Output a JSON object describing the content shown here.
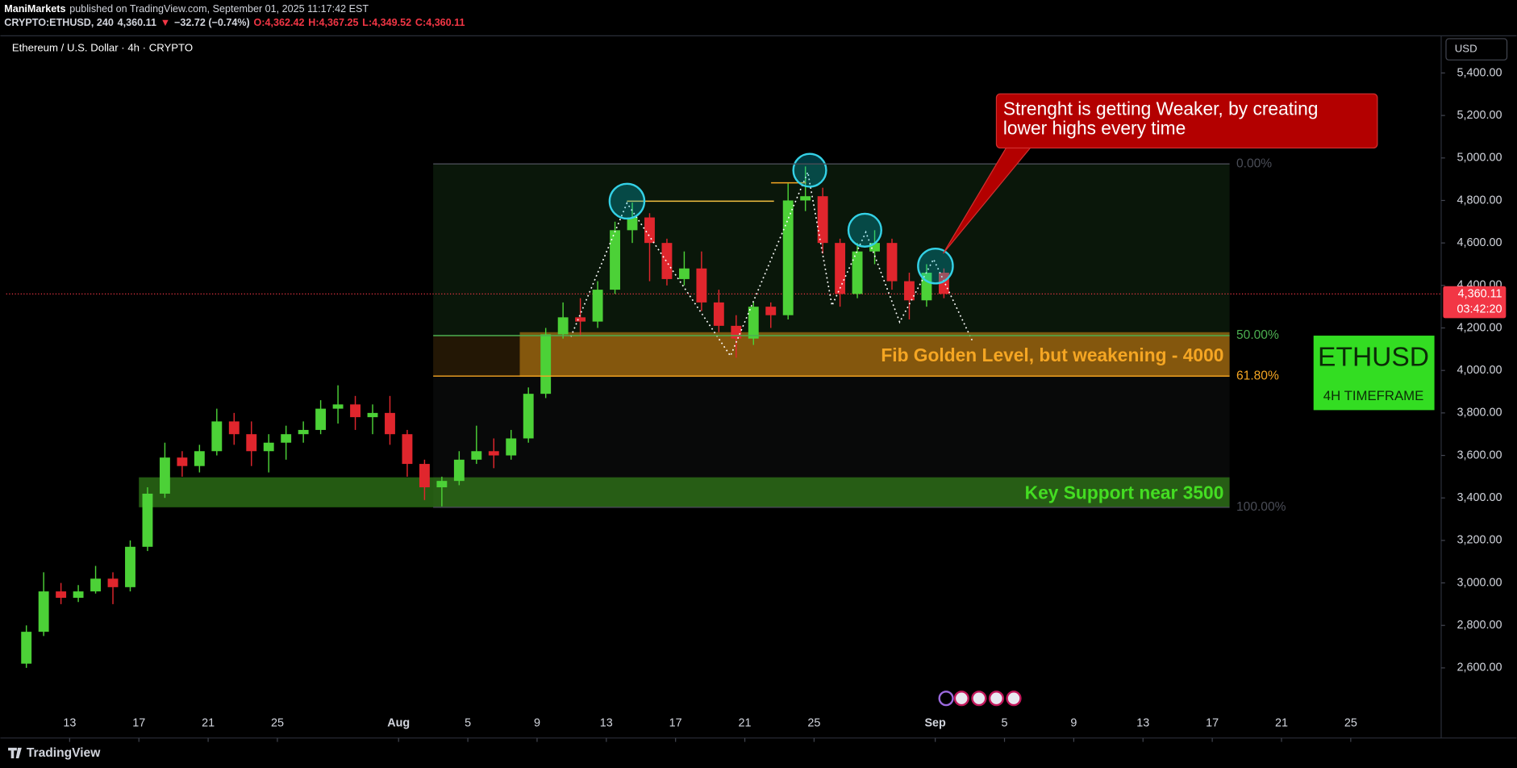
{
  "header": {
    "author": "ManiMarkets",
    "published": "published on TradingView.com, September 01, 2025 11:17:42 EST",
    "symbol_line": [
      {
        "text": "CRYPTO:ETHUSD, 240",
        "color": "#d1d4dc"
      },
      {
        "text": "4,360.11",
        "color": "#d1d4dc"
      },
      {
        "text": "▼",
        "color": "#f23645"
      },
      {
        "text": "−32.72 (−0.74%)",
        "color": "#d1d4dc"
      },
      {
        "text": "O:4,362.42",
        "color": "#f23645"
      },
      {
        "text": "H:4,367.25",
        "color": "#f23645"
      },
      {
        "text": "L:4,349.52",
        "color": "#f23645"
      },
      {
        "text": "C:4,360.11",
        "color": "#f23645"
      }
    ],
    "chart_legend": "Ethereum / U.S. Dollar · 4h · CRYPTO",
    "currency_button": "USD"
  },
  "chart_data": {
    "type": "candlestick",
    "up_color": "#4cd137",
    "down_color": "#e0262d",
    "xlim": [
      "2025-07-09",
      "2025-09-30"
    ],
    "ylim": [
      2270,
      5575
    ],
    "x": [
      "2025-07-10",
      "2025-07-11",
      "2025-07-12",
      "2025-07-13",
      "2025-07-14",
      "2025-07-15",
      "2025-07-16",
      "2025-07-17",
      "2025-07-18",
      "2025-07-19",
      "2025-07-20",
      "2025-07-21",
      "2025-07-22",
      "2025-07-23",
      "2025-07-24",
      "2025-07-25",
      "2025-07-26",
      "2025-07-27",
      "2025-07-28",
      "2025-07-29",
      "2025-07-30",
      "2025-07-31",
      "2025-08-01",
      "2025-08-02",
      "2025-08-03",
      "2025-08-04",
      "2025-08-05",
      "2025-08-06",
      "2025-08-07",
      "2025-08-08",
      "2025-08-09",
      "2025-08-10",
      "2025-08-11",
      "2025-08-12",
      "2025-08-13",
      "2025-08-14",
      "2025-08-15",
      "2025-08-16",
      "2025-08-17",
      "2025-08-18",
      "2025-08-19",
      "2025-08-20",
      "2025-08-21",
      "2025-08-22",
      "2025-08-23",
      "2025-08-24",
      "2025-08-25",
      "2025-08-26",
      "2025-08-27",
      "2025-08-28",
      "2025-08-29",
      "2025-08-30",
      "2025-08-31",
      "2025-09-01"
    ],
    "open": [
      2620,
      2770,
      2960,
      2930,
      2960,
      3020,
      2980,
      3170,
      3420,
      3590,
      3550,
      3620,
      3760,
      3700,
      3620,
      3660,
      3700,
      3720,
      3820,
      3840,
      3780,
      3800,
      3700,
      3560,
      3450,
      3480,
      3580,
      3620,
      3600,
      3680,
      3890,
      4170,
      4250,
      4230,
      4380,
      4660,
      4720,
      4600,
      4430,
      4480,
      4320,
      4210,
      4150,
      4300,
      4260,
      4800,
      4820,
      4600,
      4360,
      4560,
      4600,
      4420,
      4330,
      4460
    ],
    "high": [
      2800,
      3050,
      3000,
      2990,
      3080,
      3050,
      3200,
      3450,
      3660,
      3620,
      3650,
      3820,
      3800,
      3760,
      3700,
      3740,
      3760,
      3860,
      3930,
      3880,
      3840,
      3880,
      3720,
      3580,
      3500,
      3620,
      3740,
      3680,
      3720,
      3920,
      4200,
      4320,
      4340,
      4420,
      4700,
      4790,
      4740,
      4620,
      4560,
      4560,
      4380,
      4260,
      4320,
      4320,
      4880,
      4960,
      4860,
      4620,
      4600,
      4660,
      4620,
      4460,
      4500,
      4480
    ],
    "low": [
      2600,
      2750,
      2900,
      2910,
      2950,
      2900,
      2960,
      3150,
      3400,
      3500,
      3520,
      3600,
      3650,
      3550,
      3520,
      3580,
      3660,
      3700,
      3750,
      3720,
      3700,
      3650,
      3500,
      3390,
      3360,
      3460,
      3560,
      3540,
      3580,
      3660,
      3870,
      4150,
      4160,
      4200,
      4360,
      4600,
      4420,
      4400,
      4400,
      4280,
      4180,
      4060,
      4120,
      4200,
      4240,
      4750,
      4550,
      4300,
      4340,
      4500,
      4380,
      4240,
      4300,
      4340
    ],
    "close": [
      2770,
      2960,
      2930,
      2960,
      3020,
      2980,
      3170,
      3420,
      3590,
      3550,
      3620,
      3760,
      3700,
      3620,
      3660,
      3700,
      3720,
      3820,
      3840,
      3780,
      3800,
      3700,
      3560,
      3450,
      3480,
      3580,
      3620,
      3600,
      3680,
      3890,
      4170,
      4250,
      4230,
      4380,
      4660,
      4720,
      4600,
      4430,
      4480,
      4320,
      4210,
      4150,
      4300,
      4260,
      4800,
      4820,
      4600,
      4360,
      4560,
      4600,
      4420,
      4330,
      4460,
      4360
    ],
    "yticks": [
      {
        "value": 2600,
        "label": "2,600.00"
      },
      {
        "value": 2800,
        "label": "2,800.00"
      },
      {
        "value": 3000,
        "label": "3,000.00"
      },
      {
        "value": 3200,
        "label": "3,200.00"
      },
      {
        "value": 3400,
        "label": "3,400.00"
      },
      {
        "value": 3600,
        "label": "3,600.00"
      },
      {
        "value": 3800,
        "label": "3,800.00"
      },
      {
        "value": 4000,
        "label": "4,000.00"
      },
      {
        "value": 4200,
        "label": "4,200.00"
      },
      {
        "value": 4400,
        "label": "4,400.00"
      },
      {
        "value": 4600,
        "label": "4,600.00"
      },
      {
        "value": 4800,
        "label": "4,800.00"
      },
      {
        "value": 5000,
        "label": "5,000.00"
      },
      {
        "value": 5200,
        "label": "5,200.00"
      },
      {
        "value": 5400,
        "label": "5,400.00"
      }
    ],
    "xticks": [
      {
        "value": "2025-07-13",
        "label": "13"
      },
      {
        "value": "2025-07-17",
        "label": "17"
      },
      {
        "value": "2025-07-21",
        "label": "21"
      },
      {
        "value": "2025-07-25",
        "label": "25"
      },
      {
        "value": "2025-08-01",
        "label": "Aug"
      },
      {
        "value": "2025-08-05",
        "label": "5"
      },
      {
        "value": "2025-08-09",
        "label": "9"
      },
      {
        "value": "2025-08-13",
        "label": "13"
      },
      {
        "value": "2025-08-17",
        "label": "17"
      },
      {
        "value": "2025-08-21",
        "label": "21"
      },
      {
        "value": "2025-08-25",
        "label": "25"
      },
      {
        "value": "2025-09-01",
        "label": "Sep"
      },
      {
        "value": "2025-09-05",
        "label": "5"
      },
      {
        "value": "2025-09-09",
        "label": "9"
      },
      {
        "value": "2025-09-13",
        "label": "13"
      },
      {
        "value": "2025-09-17",
        "label": "17"
      },
      {
        "value": "2025-09-21",
        "label": "21"
      },
      {
        "value": "2025-09-25",
        "label": "25"
      }
    ],
    "last_price": {
      "value": 4360.11,
      "label": "4,360.11",
      "countdown": "03:42:20",
      "color": "#f23645"
    },
    "fib": {
      "start": "2025-08-03",
      "end": "2025-09-18",
      "high": 4972,
      "low": 3356,
      "levels": [
        {
          "value": 0,
          "label": "0.00%",
          "color": "#4a4d57"
        },
        {
          "value": 50,
          "label": "50.00%",
          "color": "#4caf50"
        },
        {
          "value": 61.8,
          "label": "61.80%",
          "color": "#f5a623"
        },
        {
          "value": 100,
          "label": "100.00%",
          "color": "#4a4d57"
        }
      ],
      "fills": [
        "rgba(76,175,80,0.13)",
        "rgba(245,166,35,0.14)",
        "rgba(120,123,134,0.07)"
      ]
    },
    "zones": [
      {
        "label": "Fib Golden Level, but weakening - 4000",
        "top": 4180,
        "bottom": 3970,
        "start": "2025-08-08",
        "end": "2025-09-18",
        "color": "rgba(214,140,20,0.55)",
        "text_color": "#f5a623"
      },
      {
        "label": "Key Support near 3500",
        "top": 3497,
        "bottom": 3356,
        "start": "2025-07-17",
        "end": "2025-09-18",
        "color": "rgba(60,150,30,0.6)",
        "text_color": "#44dd22"
      }
    ],
    "callout": [
      "Strenght is getting Weaker, by creating",
      "lower highs every time"
    ],
    "badge": {
      "title": "ETHUSD",
      "subtitle": "4H TIMEFRAME"
    }
  },
  "footer": {
    "logo": "TradingView"
  }
}
